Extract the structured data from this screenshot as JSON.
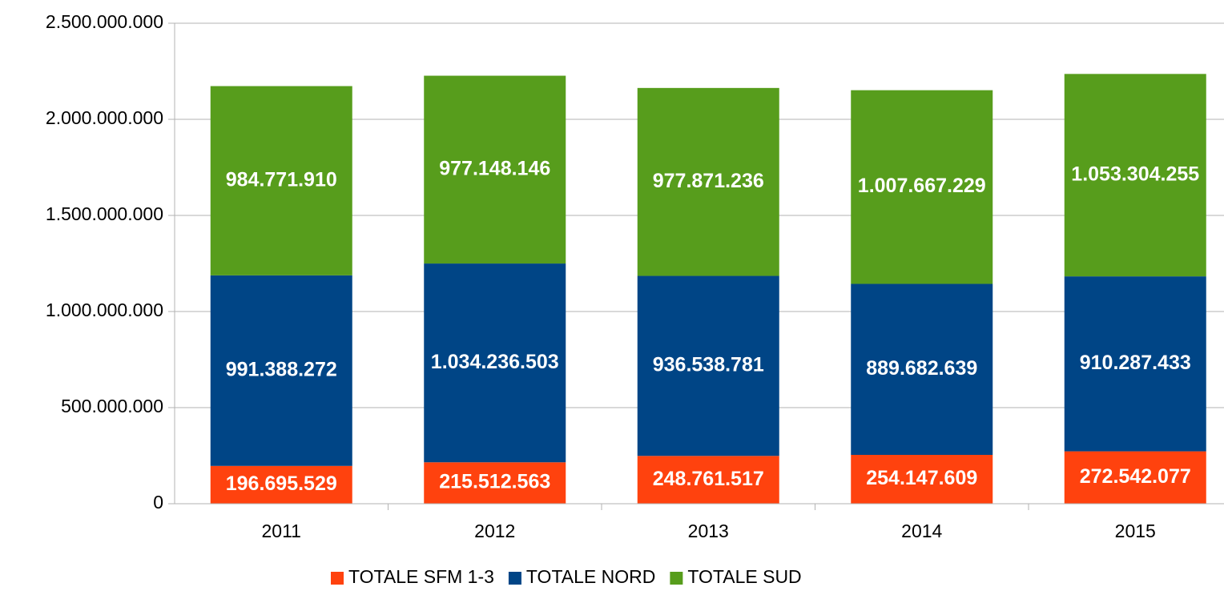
{
  "chart_data": {
    "type": "stacked_bar",
    "categories": [
      "2011",
      "2012",
      "2013",
      "2014",
      "2015"
    ],
    "series": [
      {
        "name": "TOTALE SFM 1-3",
        "color": "#ff420e",
        "values": [
          196695529,
          215512563,
          248761517,
          254147609,
          272542077
        ],
        "value_labels": [
          "196.695.529",
          "215.512.563",
          "248.761.517",
          "254.147.609",
          "272.542.077"
        ]
      },
      {
        "name": "TOTALE NORD",
        "color": "#004586",
        "values": [
          991388272,
          1034236503,
          936538781,
          889682639,
          910287433
        ],
        "value_labels": [
          "991.388.272",
          "1.034.236.503",
          "936.538.781",
          "889.682.639",
          "910.287.433"
        ]
      },
      {
        "name": "TOTALE SUD",
        "color": "#579d1c",
        "values": [
          984771910,
          977148146,
          977871236,
          1007667229,
          1053304255
        ],
        "value_labels": [
          "984.771.910",
          "977.148.146",
          "977.871.236",
          "1.007.667.229",
          "1.053.304.255"
        ]
      }
    ],
    "ylim": [
      0,
      2500000000
    ],
    "yticks": [
      0,
      {
        "value": 500000000,
        "label": "500.000.000"
      },
      {
        "value": 1000000000,
        "label": "1.000.000.000"
      },
      {
        "value": 1500000000,
        "label": "1.500.000.000"
      },
      {
        "value": 2000000000,
        "label": "2.000.000.000"
      },
      {
        "value": 2500000000,
        "label": "2.500.000.000"
      }
    ],
    "grid": true,
    "legend": "bottom"
  }
}
